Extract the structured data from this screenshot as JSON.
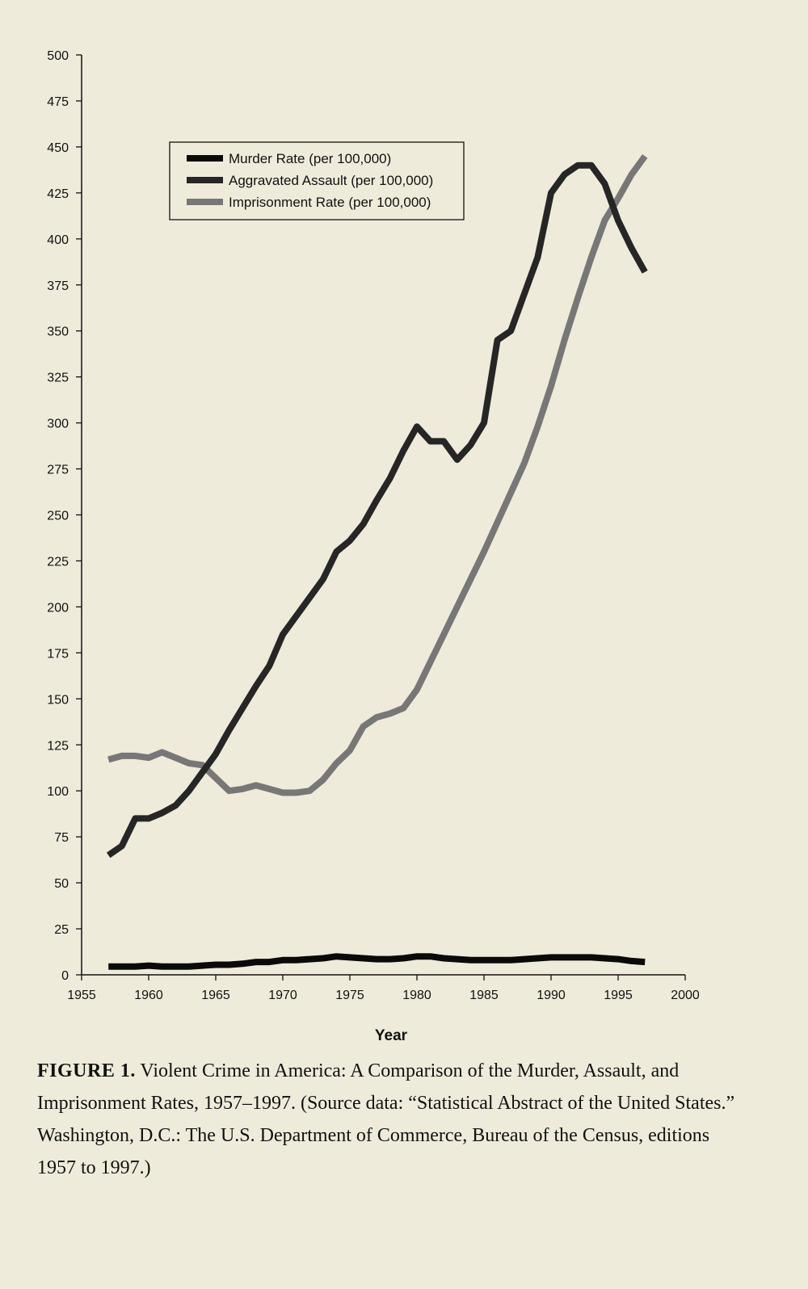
{
  "caption": {
    "figure_label": "FIGURE 1.",
    "text": "Violent Crime in America: A Comparison of the Murder, Assault, and Imprisonment Rates, 1957–1997. (Source data: “Statistical Abstract of the United States.” Washington, D.C.: The U.S. Department of Commerce, Bureau of the Census, editions 1957 to 1997.)"
  },
  "chart_data": {
    "type": "line",
    "title": "",
    "xlabel": "Year",
    "ylabel": "",
    "xlim": [
      1955,
      2000
    ],
    "ylim": [
      0,
      500
    ],
    "x_ticks": [
      1955,
      1960,
      1965,
      1970,
      1975,
      1980,
      1985,
      1990,
      1995,
      2000
    ],
    "y_ticks": [
      0,
      25,
      50,
      75,
      100,
      125,
      150,
      175,
      200,
      225,
      250,
      275,
      300,
      325,
      350,
      375,
      400,
      425,
      450,
      475,
      500
    ],
    "grid": false,
    "legend_position": "top-left",
    "series": [
      {
        "name": "Murder Rate (per 100,000)",
        "color": "#0a0a0a",
        "x": [
          1957,
          1958,
          1959,
          1960,
          1961,
          1962,
          1963,
          1964,
          1965,
          1966,
          1967,
          1968,
          1969,
          1970,
          1971,
          1972,
          1973,
          1974,
          1975,
          1976,
          1977,
          1978,
          1979,
          1980,
          1981,
          1982,
          1983,
          1984,
          1985,
          1986,
          1987,
          1988,
          1989,
          1990,
          1991,
          1992,
          1993,
          1994,
          1995,
          1996,
          1997
        ],
        "y": [
          4.5,
          4.5,
          4.5,
          5,
          4.5,
          4.5,
          4.5,
          5,
          5.5,
          5.5,
          6,
          7,
          7,
          8,
          8,
          8.5,
          9,
          10,
          9.5,
          9,
          8.5,
          8.5,
          9,
          10,
          10,
          9,
          8.5,
          8,
          8,
          8,
          8,
          8.5,
          9,
          9.5,
          9.5,
          9.5,
          9.5,
          9,
          8.5,
          7.5,
          7
        ]
      },
      {
        "name": "Aggravated Assault (per 100,000)",
        "color": "#262626",
        "x": [
          1957,
          1958,
          1959,
          1960,
          1961,
          1962,
          1963,
          1964,
          1965,
          1966,
          1967,
          1968,
          1969,
          1970,
          1971,
          1972,
          1973,
          1974,
          1975,
          1976,
          1977,
          1978,
          1979,
          1980,
          1981,
          1982,
          1983,
          1984,
          1985,
          1986,
          1987,
          1988,
          1989,
          1990,
          1991,
          1992,
          1993,
          1994,
          1995,
          1996,
          1997
        ],
        "y": [
          65,
          70,
          85,
          85,
          88,
          92,
          100,
          110,
          120,
          133,
          145,
          157,
          168,
          185,
          195,
          205,
          215,
          230,
          236,
          245,
          258,
          270,
          285,
          298,
          290,
          290,
          280,
          288,
          300,
          345,
          350,
          370,
          390,
          425,
          435,
          440,
          440,
          430,
          410,
          395,
          382
        ]
      },
      {
        "name": "Imprisonment Rate (per 100,000)",
        "color": "#777777",
        "x": [
          1957,
          1958,
          1959,
          1960,
          1961,
          1962,
          1963,
          1964,
          1965,
          1966,
          1967,
          1968,
          1969,
          1970,
          1971,
          1972,
          1973,
          1974,
          1975,
          1976,
          1977,
          1978,
          1979,
          1980,
          1981,
          1982,
          1983,
          1984,
          1985,
          1986,
          1987,
          1988,
          1989,
          1990,
          1991,
          1992,
          1993,
          1994,
          1995,
          1996,
          1997
        ],
        "y": [
          117,
          119,
          119,
          118,
          121,
          118,
          115,
          114,
          107,
          100,
          101,
          103,
          101,
          99,
          99,
          100,
          106,
          115,
          122,
          135,
          140,
          142,
          145,
          155,
          170,
          185,
          200,
          215,
          230,
          246,
          262,
          278,
          298,
          320,
          345,
          368,
          390,
          410,
          422,
          435,
          445
        ]
      }
    ]
  }
}
